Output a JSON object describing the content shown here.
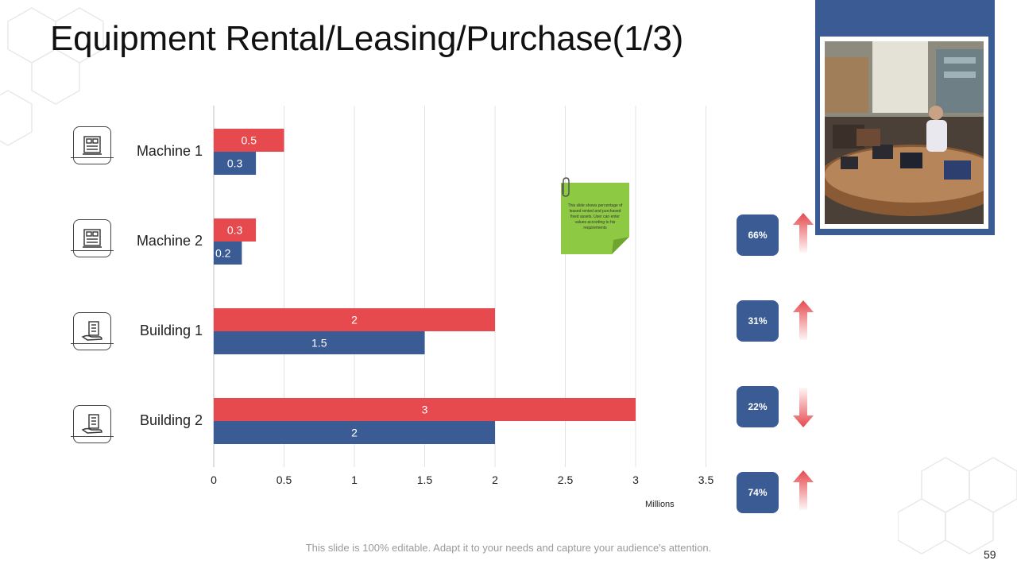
{
  "slide": {
    "title": "Equipment Rental/Leasing/Purchase(1/3)",
    "footer": "This slide is 100% editable. Adapt it to your needs and capture your audience's attention.",
    "page_number": "59"
  },
  "note": {
    "text": "This slide shows percentage of leased rented and purchased fixed assets. User can enter values according to his requirements"
  },
  "rows": [
    {
      "label": "Machine 1",
      "icon": "machine-icon",
      "badge": "66%",
      "trend": "up"
    },
    {
      "label": "Machine 2",
      "icon": "machine-icon",
      "badge": "31%",
      "trend": "up"
    },
    {
      "label": "Building 1",
      "icon": "building-hand-icon",
      "badge": "22%",
      "trend": "down"
    },
    {
      "label": "Building 2",
      "icon": "building-hand-icon",
      "badge": "74%",
      "trend": "up"
    }
  ],
  "colors": {
    "red": "#e64a4f",
    "blue": "#3a5b94",
    "arrow": "#e64a4f"
  },
  "chart_data": {
    "type": "bar",
    "orientation": "horizontal",
    "categories": [
      "Machine 1",
      "Machine 2",
      "Building 1",
      "Building 2"
    ],
    "series": [
      {
        "values": [
          0.5,
          0.3,
          2,
          3
        ],
        "color": "#e64a4f"
      },
      {
        "values": [
          0.3,
          0.2,
          1.5,
          2
        ],
        "color": "#3a5b94"
      }
    ],
    "xlabel": "Millions",
    "xlim": [
      0,
      3.5
    ],
    "xticks": [
      "0",
      "0.5",
      "1",
      "1.5",
      "2",
      "2.5",
      "3",
      "3.5"
    ],
    "grid": "vertical",
    "data_labels": true
  }
}
